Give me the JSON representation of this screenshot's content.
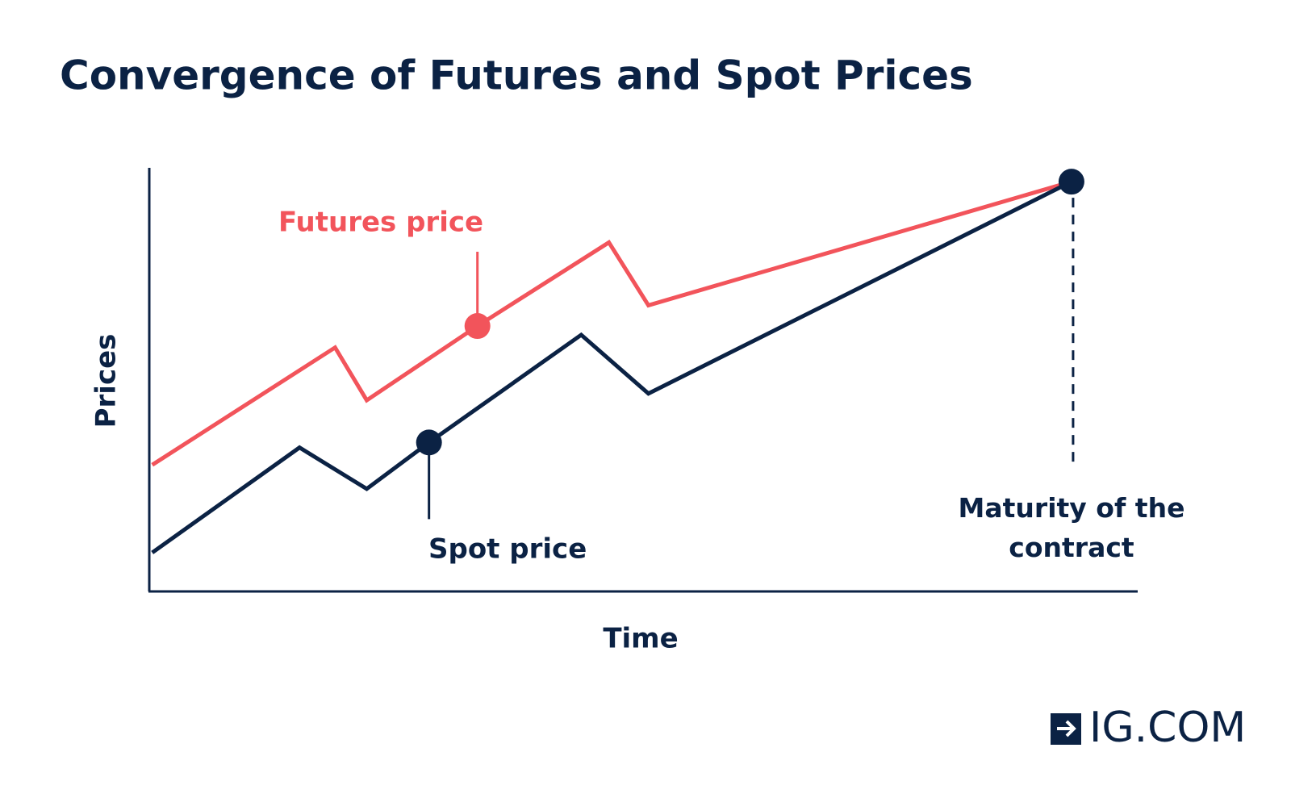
{
  "chart_data": {
    "type": "line",
    "title": "Convergence of Futures and Spot Prices",
    "x_label": "Time",
    "y_label": "Prices",
    "xlim": [
      0,
      100
    ],
    "ylim": [
      0,
      100
    ],
    "series": [
      {
        "name": "Futures price",
        "color": "#f2545b",
        "x": [
          0.3,
          18.8,
          22,
          33.2,
          46.5,
          50.5,
          93.3
        ],
        "values": [
          30,
          57.8,
          45.3,
          62.9,
          82.7,
          67.8,
          97.1
        ]
      },
      {
        "name": "Spot price",
        "color": "#0b2244",
        "x": [
          0.3,
          15.2,
          22,
          28.3,
          43.7,
          50.5,
          93.3
        ],
        "values": [
          9.2,
          34.1,
          24.3,
          35.3,
          60.8,
          46.9,
          97.1
        ]
      }
    ],
    "annotation": "Maturity of the contract"
  },
  "logo": "IG.COM"
}
